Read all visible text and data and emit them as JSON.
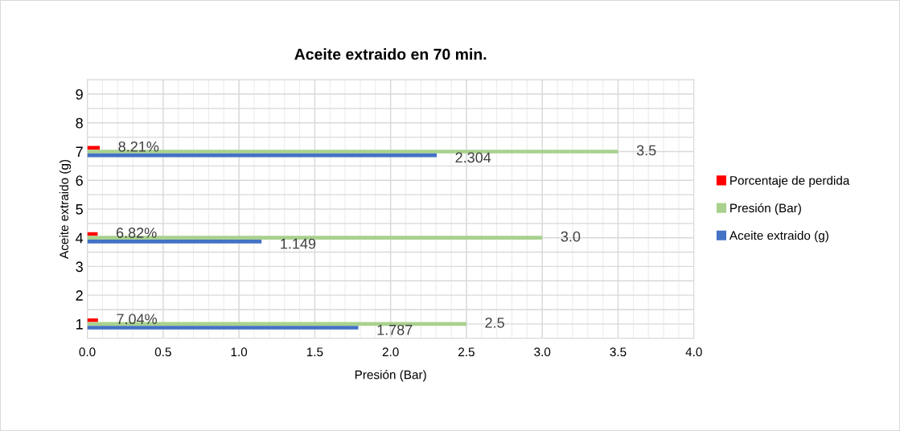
{
  "chart_data": {
    "type": "bar",
    "orientation": "horizontal",
    "title": "Aceite extraido en 70 min.",
    "xlabel": "Presión (Bar)",
    "ylabel": "Aceite extraido (g)",
    "categories": [
      "9",
      "8",
      "7",
      "6",
      "5",
      "4",
      "3",
      "2",
      "1"
    ],
    "series": [
      {
        "name": "Porcentaje de perdida",
        "color": "#ff0000",
        "values": [
          null,
          null,
          0.0821,
          null,
          null,
          0.0682,
          null,
          null,
          0.0704
        ],
        "value_labels": [
          null,
          null,
          "8.21%",
          null,
          null,
          "6.82%",
          null,
          null,
          "7.04%"
        ]
      },
      {
        "name": "Presión (Bar)",
        "color": "#a9d18e",
        "values": [
          null,
          null,
          3.5,
          null,
          null,
          3.0,
          null,
          null,
          2.5
        ],
        "value_labels": [
          null,
          null,
          "3.5",
          null,
          null,
          "3.0",
          null,
          null,
          "2.5"
        ]
      },
      {
        "name": "Aceite extraido (g)",
        "color": "#4472c4",
        "values": [
          null,
          null,
          2.304,
          null,
          null,
          1.149,
          null,
          null,
          1.787
        ],
        "value_labels": [
          null,
          null,
          "2.304",
          null,
          null,
          "1.149",
          null,
          null,
          "1.787"
        ]
      }
    ],
    "xlim": [
      0,
      4
    ],
    "xticks": [
      {
        "value": 0,
        "label": "0.0"
      },
      {
        "value": 0.5,
        "label": "0.5"
      },
      {
        "value": 1,
        "label": "1.0"
      },
      {
        "value": 1.5,
        "label": "1.5"
      },
      {
        "value": 2,
        "label": "2.0"
      },
      {
        "value": 2.5,
        "label": "2.5"
      },
      {
        "value": 3,
        "label": "3.0"
      },
      {
        "value": 3.5,
        "label": "3.5"
      },
      {
        "value": 4,
        "label": "4.0"
      }
    ],
    "grid": true,
    "legend": "right"
  }
}
